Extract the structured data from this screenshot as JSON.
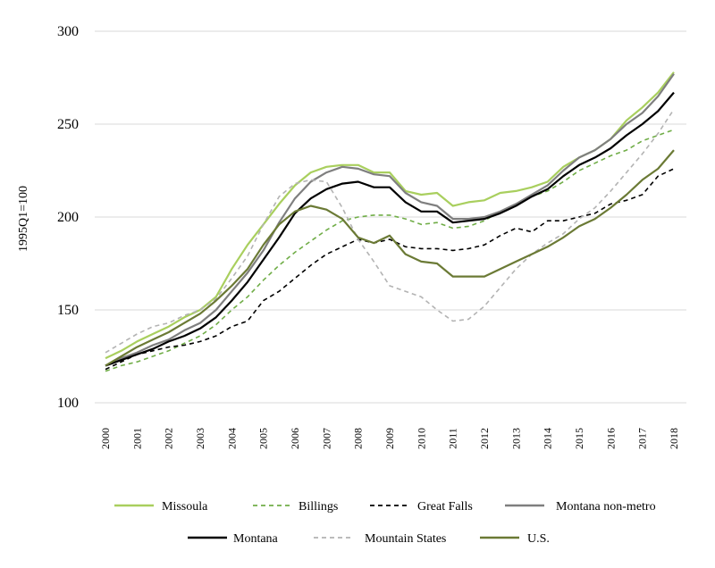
{
  "chart_data": {
    "type": "line",
    "ylabel": "1995Q1=100",
    "ylim": [
      100,
      300
    ],
    "yticks": [
      "100",
      "150",
      "200",
      "250",
      "300"
    ],
    "xticks": [
      "2000",
      "2001",
      "2002",
      "2003",
      "2004",
      "2005",
      "2006",
      "2007",
      "2008",
      "2009",
      "2010",
      "2011",
      "2012",
      "2013",
      "2014",
      "2015",
      "2016",
      "2017",
      "2018"
    ],
    "xlim": [
      2000,
      2018.1
    ],
    "grid": true,
    "legend_position": "bottom",
    "series": [
      {
        "name": "Missoula",
        "color": "#a9cf5e",
        "dash": "solid",
        "x": [
          2000,
          2000.5,
          2001,
          2001.5,
          2002,
          2002.5,
          2003,
          2003.5,
          2004,
          2004.5,
          2005,
          2005.5,
          2006,
          2006.5,
          2007,
          2007.5,
          2008,
          2008.5,
          2009,
          2009.5,
          2010,
          2010.5,
          2011,
          2011.5,
          2012,
          2012.5,
          2013,
          2013.5,
          2014,
          2014.5,
          2015,
          2015.5,
          2016,
          2016.5,
          2017,
          2017.5,
          2018
        ],
        "y": [
          124,
          128,
          133,
          137,
          141,
          146,
          150,
          157,
          172,
          185,
          196,
          207,
          217,
          224,
          227,
          228,
          228,
          224,
          224,
          214,
          212,
          213,
          206,
          208,
          209,
          213,
          214,
          216,
          219,
          227,
          232,
          236,
          242,
          252,
          259,
          267,
          278
        ]
      },
      {
        "name": "Billings",
        "color": "#70ad47",
        "dash": "dashed",
        "x": [
          2000,
          2000.5,
          2001,
          2001.5,
          2002,
          2002.5,
          2003,
          2003.5,
          2004,
          2004.5,
          2005,
          2005.5,
          2006,
          2006.5,
          2007,
          2007.5,
          2008,
          2008.5,
          2009,
          2009.5,
          2010,
          2010.5,
          2011,
          2011.5,
          2012,
          2012.5,
          2013,
          2013.5,
          2014,
          2014.5,
          2015,
          2015.5,
          2016,
          2016.5,
          2017,
          2017.5,
          2018
        ],
        "y": [
          117,
          120,
          122,
          125,
          128,
          132,
          136,
          142,
          150,
          157,
          166,
          174,
          181,
          187,
          193,
          198,
          200,
          201,
          201,
          199,
          196,
          197,
          194,
          195,
          198,
          203,
          207,
          211,
          214,
          219,
          225,
          229,
          233,
          236,
          241,
          244,
          247
        ]
      },
      {
        "name": "Great Falls",
        "color": "#000000",
        "dash": "dashed",
        "x": [
          2000,
          2000.5,
          2001,
          2001.5,
          2002,
          2002.5,
          2003,
          2003.5,
          2004,
          2004.5,
          2005,
          2005.5,
          2006,
          2006.5,
          2007,
          2007.5,
          2008,
          2008.5,
          2009,
          2009.5,
          2010,
          2010.5,
          2011,
          2011.5,
          2012,
          2012.5,
          2013,
          2013.5,
          2014,
          2014.5,
          2015,
          2015.5,
          2016,
          2016.5,
          2017,
          2017.5,
          2018
        ],
        "y": [
          118,
          122,
          126,
          128,
          130,
          131,
          133,
          136,
          141,
          144,
          155,
          160,
          167,
          174,
          180,
          184,
          188,
          186,
          188,
          184,
          183,
          183,
          182,
          183,
          185,
          190,
          194,
          192,
          198,
          198,
          200,
          202,
          207,
          209,
          212,
          222,
          226
        ]
      },
      {
        "name": "Montana non-metro",
        "color": "#7f7f7f",
        "dash": "solid",
        "x": [
          2000,
          2000.5,
          2001,
          2001.5,
          2002,
          2002.5,
          2003,
          2003.5,
          2004,
          2004.5,
          2005,
          2005.5,
          2006,
          2006.5,
          2007,
          2007.5,
          2008,
          2008.5,
          2009,
          2009.5,
          2010,
          2010.5,
          2011,
          2011.5,
          2012,
          2012.5,
          2013,
          2013.5,
          2014,
          2014.5,
          2015,
          2015.5,
          2016,
          2016.5,
          2017,
          2017.5,
          2018
        ],
        "y": [
          120,
          124,
          127,
          131,
          134,
          139,
          143,
          150,
          160,
          170,
          182,
          197,
          210,
          219,
          224,
          227,
          226,
          223,
          222,
          213,
          208,
          206,
          199,
          199,
          200,
          203,
          207,
          212,
          217,
          225,
          232,
          236,
          242,
          250,
          256,
          265,
          277
        ]
      },
      {
        "name": "Montana",
        "color": "#000000",
        "dash": "solid",
        "x": [
          2000,
          2000.5,
          2001,
          2001.5,
          2002,
          2002.5,
          2003,
          2003.5,
          2004,
          2004.5,
          2005,
          2005.5,
          2006,
          2006.5,
          2007,
          2007.5,
          2008,
          2008.5,
          2009,
          2009.5,
          2010,
          2010.5,
          2011,
          2011.5,
          2012,
          2012.5,
          2013,
          2013.5,
          2014,
          2014.5,
          2015,
          2015.5,
          2016,
          2016.5,
          2017,
          2017.5,
          2018
        ],
        "y": [
          120,
          123,
          126,
          129,
          133,
          136,
          140,
          146,
          155,
          165,
          177,
          189,
          202,
          210,
          215,
          218,
          219,
          216,
          216,
          208,
          203,
          203,
          197,
          198,
          199,
          202,
          206,
          211,
          215,
          222,
          228,
          232,
          237,
          244,
          250,
          257,
          267
        ]
      },
      {
        "name": "Mountain States",
        "color": "#b3b3b3",
        "dash": "dashed",
        "x": [
          2000,
          2000.5,
          2001,
          2001.5,
          2002,
          2002.5,
          2003,
          2003.5,
          2004,
          2004.5,
          2005,
          2005.5,
          2006,
          2006.5,
          2007,
          2007.5,
          2008,
          2008.5,
          2009,
          2009.5,
          2010,
          2010.5,
          2011,
          2011.5,
          2012,
          2012.5,
          2013,
          2013.5,
          2014,
          2014.5,
          2015,
          2015.5,
          2016,
          2016.5,
          2017,
          2017.5,
          2018
        ],
        "y": [
          127,
          132,
          137,
          141,
          143,
          147,
          150,
          156,
          167,
          179,
          196,
          211,
          218,
          220,
          219,
          205,
          188,
          176,
          163,
          160,
          157,
          150,
          144,
          145,
          152,
          162,
          172,
          180,
          186,
          191,
          199,
          205,
          214,
          224,
          234,
          245,
          258
        ]
      },
      {
        "name": "U.S.",
        "color": "#6b7a35",
        "dash": "solid",
        "x": [
          2000,
          2000.5,
          2001,
          2001.5,
          2002,
          2002.5,
          2003,
          2003.5,
          2004,
          2004.5,
          2005,
          2005.5,
          2006,
          2006.5,
          2007,
          2007.5,
          2008,
          2008.5,
          2009,
          2009.5,
          2010,
          2010.5,
          2011,
          2011.5,
          2012,
          2012.5,
          2013,
          2013.5,
          2014,
          2014.5,
          2015,
          2015.5,
          2016,
          2016.5,
          2017,
          2017.5,
          2018
        ],
        "y": [
          120,
          125,
          130,
          134,
          138,
          143,
          148,
          155,
          163,
          172,
          185,
          196,
          203,
          206,
          204,
          199,
          189,
          186,
          190,
          180,
          176,
          175,
          168,
          168,
          168,
          172,
          176,
          180,
          184,
          189,
          195,
          199,
          205,
          212,
          220,
          226,
          236
        ]
      }
    ]
  }
}
